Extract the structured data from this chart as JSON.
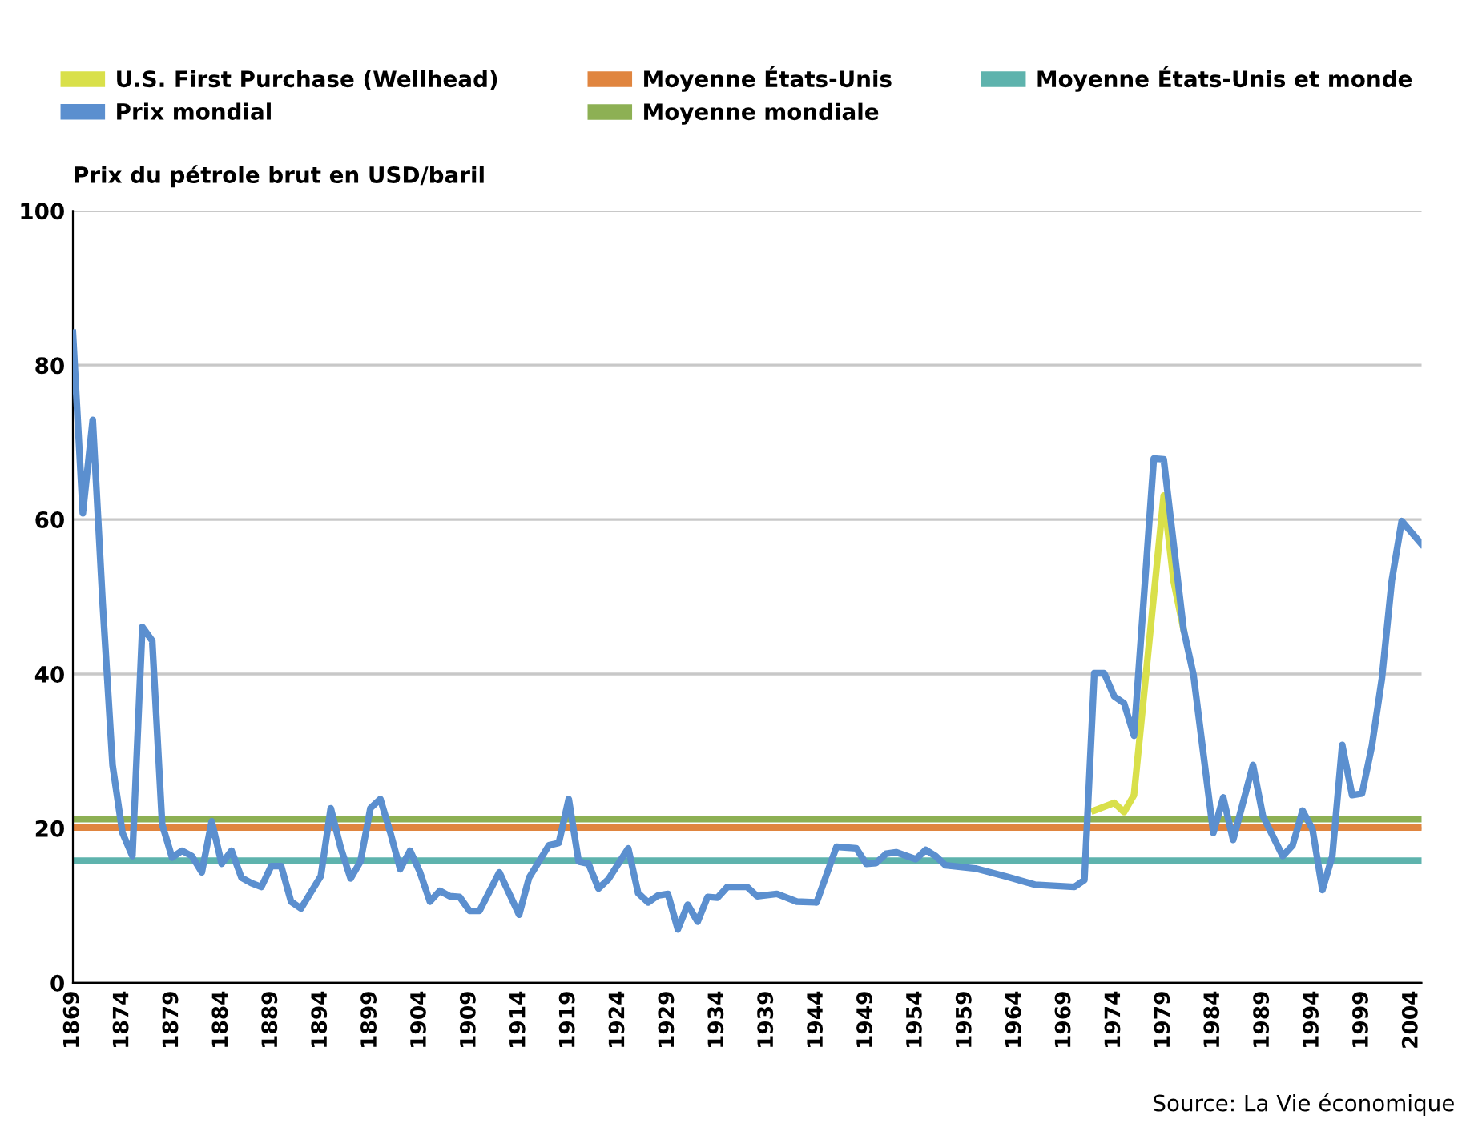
{
  "chart_data": {
    "type": "line",
    "ylabel": "Prix du pétrole brut en USD/baril",
    "xlim": [
      1869,
      2005
    ],
    "ylim": [
      0,
      100
    ],
    "xticks": [
      1869,
      1874,
      1879,
      1884,
      1889,
      1894,
      1899,
      1904,
      1909,
      1914,
      1919,
      1924,
      1929,
      1934,
      1939,
      1944,
      1949,
      1954,
      1959,
      1964,
      1969,
      1974,
      1979,
      1984,
      1989,
      1994,
      1999,
      2004
    ],
    "yticks": [
      0,
      20,
      40,
      60,
      80,
      100
    ],
    "grid": "y",
    "legend": "top",
    "marker": "none",
    "line_style": "solid",
    "annotations": [
      "Source: La Vie économique"
    ],
    "series": [
      {
        "name": "U.S. First Purchase (Wellhead)",
        "color": "#d9e04a",
        "x": [
          1972,
          1974,
          1975,
          1976,
          1979,
          1980,
          1981
        ],
        "values": [
          22.3,
          23.3,
          22.1,
          24.3,
          63.1,
          52.0,
          45.8
        ]
      },
      {
        "name": "Prix mondial",
        "color": "#5b8fcf",
        "x": [
          1869,
          1870,
          1871,
          1872,
          1873,
          1874,
          1875,
          1876,
          1877,
          1878,
          1879,
          1880,
          1881,
          1882,
          1883,
          1884,
          1885,
          1886,
          1887,
          1888,
          1889,
          1890,
          1891,
          1892,
          1893,
          1894,
          1895,
          1896,
          1897,
          1898,
          1899,
          1900,
          1901,
          1902,
          1903,
          1904,
          1905,
          1906,
          1907,
          1908,
          1909,
          1910,
          1912,
          1914,
          1915,
          1917,
          1918,
          1919,
          1920,
          1921,
          1922,
          1923,
          1925,
          1926,
          1927,
          1928,
          1929,
          1930,
          1931,
          1932,
          1933,
          1934,
          1935,
          1937,
          1938,
          1940,
          1942,
          1944,
          1946,
          1948,
          1949,
          1950,
          1951,
          1952,
          1954,
          1955,
          1956,
          1957,
          1960,
          1963,
          1966,
          1970,
          1971,
          1972,
          1973,
          1974,
          1975,
          1976,
          1978,
          1979,
          1981,
          1982,
          1984,
          1985,
          1986,
          1988,
          1989,
          1991,
          1992,
          1993,
          1994,
          1995,
          1996,
          1997,
          1998,
          1999,
          2000,
          2001,
          2002,
          2003,
          2005
        ],
        "values": [
          84.2,
          60.8,
          72.9,
          49.2,
          28.2,
          19.4,
          16.4,
          46.1,
          44.3,
          20.5,
          16.2,
          17.1,
          16.4,
          14.3,
          20.9,
          15.4,
          17.1,
          13.6,
          12.9,
          12.4,
          15.1,
          15.1,
          10.5,
          9.6,
          11.7,
          13.8,
          22.6,
          17.5,
          13.5,
          15.7,
          22.6,
          23.8,
          19.5,
          14.7,
          17.1,
          14.3,
          10.5,
          11.9,
          11.2,
          11.1,
          9.3,
          9.3,
          14.3,
          8.8,
          13.6,
          17.8,
          18.1,
          23.8,
          15.7,
          15.4,
          12.2,
          13.4,
          17.4,
          11.6,
          10.4,
          11.3,
          11.5,
          6.9,
          10.1,
          7.9,
          11.1,
          11.0,
          12.4,
          12.4,
          11.2,
          11.5,
          10.5,
          10.4,
          17.6,
          17.4,
          15.4,
          15.5,
          16.7,
          16.9,
          16.0,
          17.2,
          16.4,
          15.2,
          14.8,
          13.8,
          12.7,
          12.4,
          13.3,
          40.1,
          40.1,
          37.1,
          36.2,
          32.0,
          67.9,
          67.8,
          45.8,
          39.9,
          19.4,
          24.0,
          18.5,
          28.2,
          21.6,
          16.4,
          17.8,
          22.3,
          19.9,
          12.0,
          16.4,
          30.8,
          24.3,
          24.5,
          30.7,
          39.4,
          52.1,
          59.8,
          56.8
        ]
      },
      {
        "name": "Moyenne États-Unis",
        "color": "#e0853f",
        "x": [
          1869,
          2005
        ],
        "values": [
          20.1,
          20.1
        ]
      },
      {
        "name": "Moyenne mondiale",
        "color": "#8db054",
        "x": [
          1869,
          2005
        ],
        "values": [
          21.2,
          21.2
        ]
      },
      {
        "name": "Moyenne États-Unis et monde",
        "color": "#5eb3ad",
        "x": [
          1869,
          2005
        ],
        "values": [
          15.8,
          15.8
        ]
      }
    ]
  }
}
